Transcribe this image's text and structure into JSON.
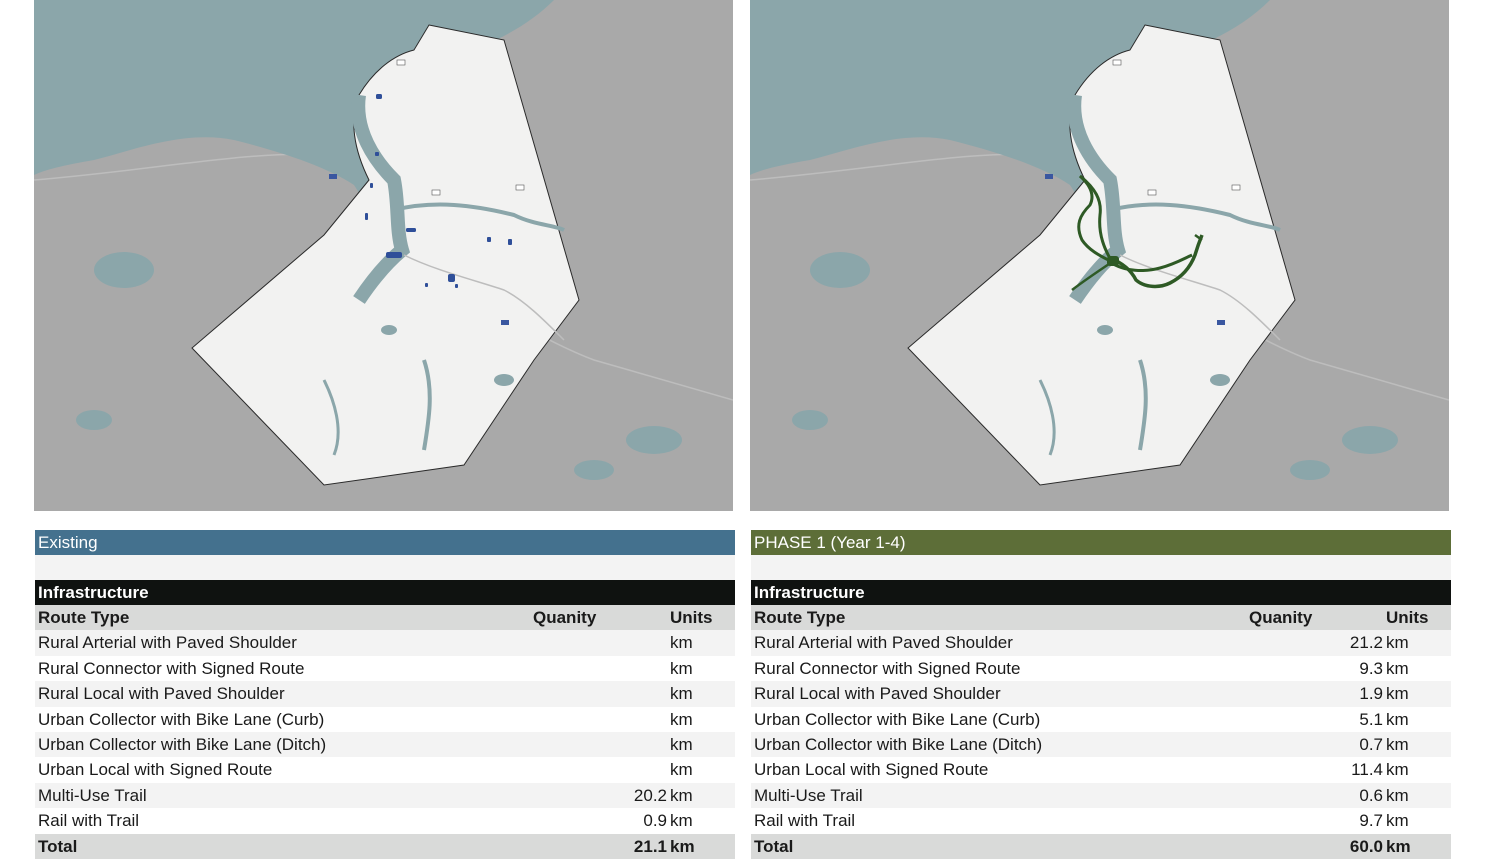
{
  "colors": {
    "existing_header": "#44718e",
    "phase1_header": "#5d6e38",
    "existing_route": "#2f4f99",
    "phase1_route": "#2e5a25",
    "water": "#8ba6aa",
    "land_outside": "#a9a9a9",
    "study_area": "#f2f2f1"
  },
  "panels": [
    {
      "title": "Existing",
      "infra_label": "Infrastructure",
      "col_route": "Route Type",
      "col_qty": "Quanity",
      "col_units": "Units",
      "rows": [
        {
          "type": "Rural Arterial with Paved Shoulder",
          "qty": "",
          "unit": "km"
        },
        {
          "type": "Rural Connector with Signed Route",
          "qty": "",
          "unit": "km"
        },
        {
          "type": "Rural Local with Paved Shoulder",
          "qty": "",
          "unit": "km"
        },
        {
          "type": "Urban Collector with Bike Lane (Curb)",
          "qty": "",
          "unit": "km"
        },
        {
          "type": "Urban Collector with Bike Lane (Ditch)",
          "qty": "",
          "unit": "km"
        },
        {
          "type": "Urban Local with Signed Route",
          "qty": "",
          "unit": "km"
        },
        {
          "type": "Multi-Use Trail",
          "qty": "20.2",
          "unit": "km"
        },
        {
          "type": "Rail with Trail",
          "qty": "0.9",
          "unit": "km"
        }
      ],
      "total_label": "Total",
      "total_qty": "21.1",
      "total_unit": "km"
    },
    {
      "title": "PHASE 1 (Year 1-4)",
      "infra_label": "Infrastructure",
      "col_route": "Route Type",
      "col_qty": "Quanity",
      "col_units": "Units",
      "rows": [
        {
          "type": "Rural Arterial with Paved Shoulder",
          "qty": "21.2",
          "unit": "km"
        },
        {
          "type": "Rural Connector with Signed Route",
          "qty": "9.3",
          "unit": "km"
        },
        {
          "type": "Rural Local with Paved Shoulder",
          "qty": "1.9",
          "unit": "km"
        },
        {
          "type": "Urban Collector with Bike Lane (Curb)",
          "qty": "5.1",
          "unit": "km"
        },
        {
          "type": "Urban Collector with Bike Lane (Ditch)",
          "qty": "0.7",
          "unit": "km"
        },
        {
          "type": "Urban Local with Signed Route",
          "qty": "11.4",
          "unit": "km"
        },
        {
          "type": "Multi-Use Trail",
          "qty": "0.6",
          "unit": "km"
        },
        {
          "type": "Rail with Trail",
          "qty": "9.7",
          "unit": "km"
        }
      ],
      "total_label": "Total",
      "total_qty": "60.0",
      "total_unit": "km"
    }
  ]
}
